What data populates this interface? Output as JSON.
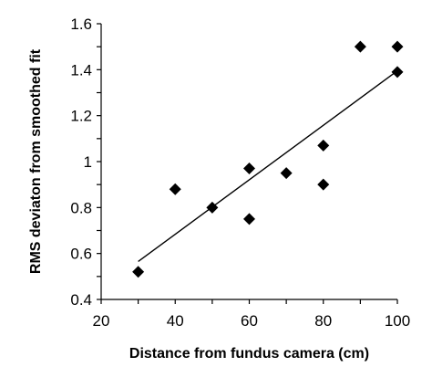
{
  "chart_data": {
    "type": "scatter",
    "title": "",
    "xlabel": "Distance from fundus camera (cm)",
    "ylabel": "RMS deviaton  from smoothed fit",
    "xlim": [
      20,
      100
    ],
    "ylim": [
      0.4,
      1.6
    ],
    "xticks": [
      20,
      40,
      60,
      80,
      100
    ],
    "yticks": [
      0.4,
      0.6,
      0.8,
      1.0,
      1.2,
      1.4,
      1.6
    ],
    "xtick_labels": [
      "20",
      "40",
      "60",
      "80",
      "100"
    ],
    "ytick_labels": [
      "0.4",
      "0.6",
      "0.8",
      "1",
      "1.2",
      "1.4",
      "1.6"
    ],
    "points": [
      {
        "x": 30,
        "y": 0.52
      },
      {
        "x": 40,
        "y": 0.88
      },
      {
        "x": 50,
        "y": 0.8
      },
      {
        "x": 60,
        "y": 0.97
      },
      {
        "x": 60,
        "y": 0.75
      },
      {
        "x": 70,
        "y": 0.95
      },
      {
        "x": 80,
        "y": 1.07
      },
      {
        "x": 80,
        "y": 0.9
      },
      {
        "x": 90,
        "y": 1.5
      },
      {
        "x": 100,
        "y": 1.5
      },
      {
        "x": 100,
        "y": 1.39
      }
    ],
    "trendline": {
      "type": "linear",
      "x": [
        30,
        100
      ],
      "y": [
        0.565,
        1.395
      ]
    },
    "marker": "diamond",
    "marker_color": "#000000",
    "grid": false,
    "legend": "none"
  }
}
